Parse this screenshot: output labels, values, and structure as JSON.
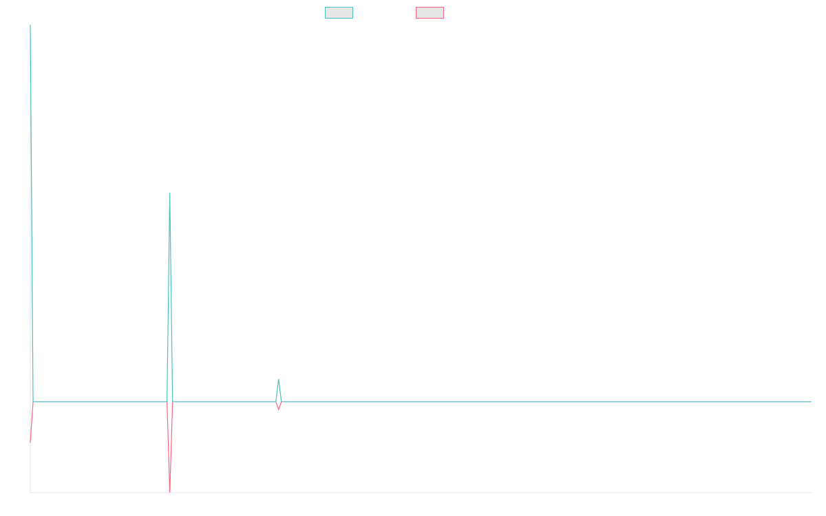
{
  "chart_data": {
    "type": "line",
    "title": "",
    "xlabel": "",
    "ylabel": "",
    "legend": {
      "placement": "top-center"
    },
    "grid": false,
    "x": [
      0,
      1,
      49,
      50,
      51,
      88,
      89,
      90,
      280
    ],
    "ylim": [
      -20,
      83
    ],
    "series": [
      {
        "color": "#4bc0c0",
        "fill": "#e6e6e6",
        "values": [
          83,
          0,
          0,
          46,
          0,
          0,
          5,
          0,
          0
        ]
      },
      {
        "color": "#ff6384",
        "fill": "#e6e6e6",
        "values": [
          -9,
          0,
          0,
          -20,
          0,
          0,
          -1.7,
          0,
          0
        ]
      }
    ]
  }
}
